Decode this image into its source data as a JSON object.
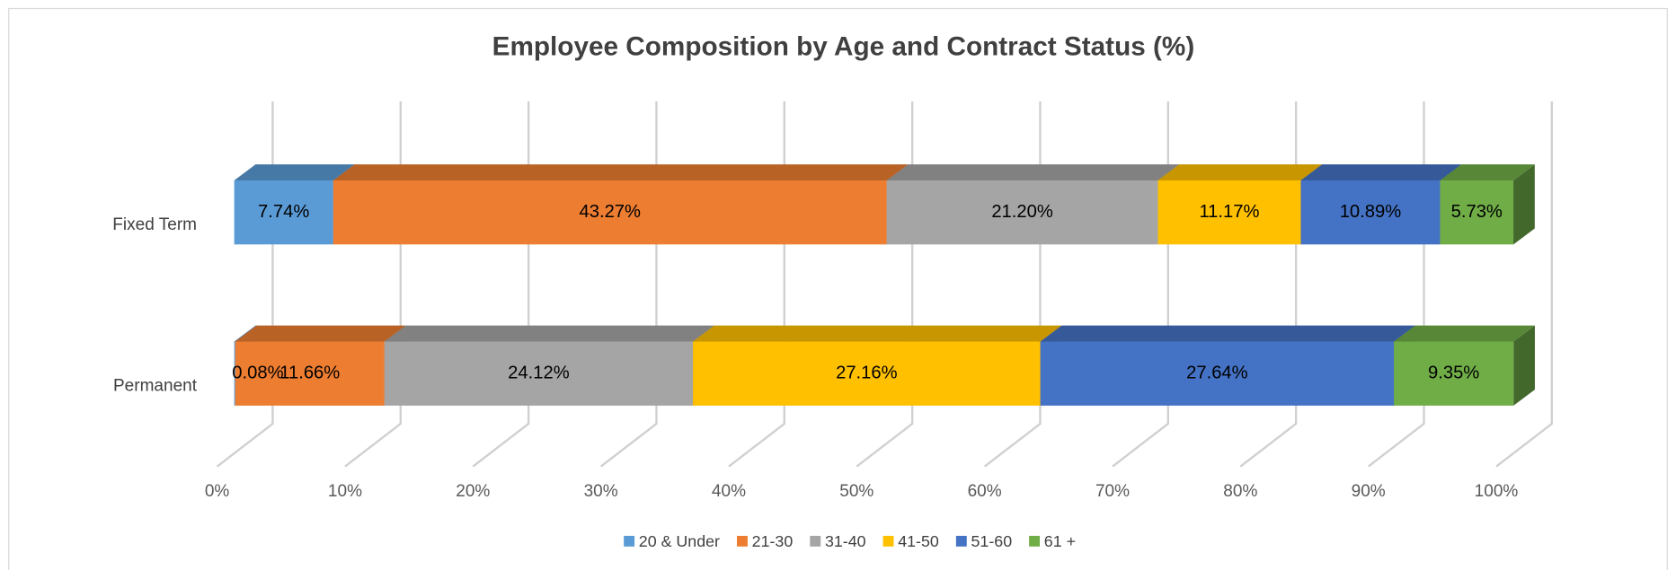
{
  "chart_data": {
    "type": "bar3d_stacked_horizontal",
    "title": "Employee Composition by Age and Contract Status (%)",
    "categories": [
      "Fixed Term",
      "Permanent"
    ],
    "series": [
      {
        "name": "20 & Under",
        "color": "#5b9bd5",
        "values": [
          7.74,
          0.08
        ],
        "value_labels": [
          "7.74%",
          "0.08%"
        ]
      },
      {
        "name": "21-30",
        "color": "#ed7d31",
        "values": [
          43.27,
          11.66
        ],
        "value_labels": [
          "43.27%",
          "11.66%"
        ]
      },
      {
        "name": "31-40",
        "color": "#a5a5a5",
        "values": [
          21.2,
          24.12
        ],
        "value_labels": [
          "21.20%",
          "24.12%"
        ]
      },
      {
        "name": "41-50",
        "color": "#ffc000",
        "values": [
          11.17,
          27.16
        ],
        "value_labels": [
          "11.17%",
          "27.16%"
        ]
      },
      {
        "name": "51-60",
        "color": "#4472c4",
        "values": [
          10.89,
          27.64
        ],
        "value_labels": [
          "10.89%",
          "27.64%"
        ]
      },
      {
        "name": "61 +",
        "color": "#70ad47",
        "values": [
          5.73,
          9.35
        ],
        "value_labels": [
          "5.73%",
          "9.35%"
        ]
      }
    ],
    "xlim": [
      0,
      100
    ],
    "xticks": [
      {
        "value": 0,
        "label": "0%"
      },
      {
        "value": 10,
        "label": "10%"
      },
      {
        "value": 20,
        "label": "20%"
      },
      {
        "value": 30,
        "label": "30%"
      },
      {
        "value": 40,
        "label": "40%"
      },
      {
        "value": 50,
        "label": "50%"
      },
      {
        "value": 60,
        "label": "60%"
      },
      {
        "value": 70,
        "label": "70%"
      },
      {
        "value": 80,
        "label": "80%"
      },
      {
        "value": 90,
        "label": "90%"
      },
      {
        "value": 100,
        "label": "100%"
      }
    ],
    "grid": true,
    "legend": "bottom"
  }
}
